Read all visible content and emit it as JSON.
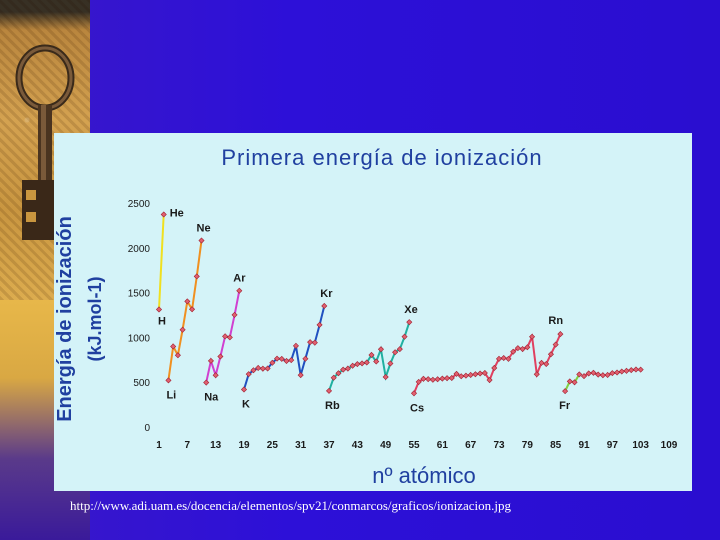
{
  "source_url": "http://www.adi.uam.es/docencia/elementos/spv21/conmarcos/graficos/ionizacion.jpg",
  "chart_data": {
    "type": "line",
    "title": "Primera energía de ionización",
    "xlabel": "nº atómico",
    "ylabel_line1": "Energía de ionización",
    "ylabel_line2": "(kJ.mol-1)",
    "ylim": [
      0,
      2500
    ],
    "xlim": [
      1,
      109
    ],
    "y_ticks": [
      "0",
      "500",
      "1000",
      "1500",
      "2000",
      "2500"
    ],
    "x_ticks": [
      "1",
      "7",
      "13",
      "19",
      "25",
      "31",
      "37",
      "43",
      "49",
      "55",
      "61",
      "67",
      "73",
      "79",
      "85",
      "91",
      "97",
      "103",
      "109"
    ],
    "grid": false,
    "series": [
      {
        "color": "#f0e020",
        "points": [
          [
            1,
            1312
          ],
          [
            2,
            2372
          ]
        ]
      },
      {
        "color": "#f09020",
        "points": [
          [
            3,
            520
          ],
          [
            4,
            899
          ],
          [
            5,
            801
          ],
          [
            6,
            1086
          ],
          [
            7,
            1402
          ],
          [
            8,
            1314
          ],
          [
            9,
            1681
          ],
          [
            10,
            2081
          ]
        ]
      },
      {
        "color": "#d040d0",
        "points": [
          [
            11,
            496
          ],
          [
            12,
            738
          ],
          [
            13,
            578
          ],
          [
            14,
            787
          ],
          [
            15,
            1012
          ],
          [
            16,
            1000
          ],
          [
            17,
            1251
          ],
          [
            18,
            1521
          ]
        ]
      },
      {
        "color": "#2050c0",
        "points": [
          [
            19,
            419
          ],
          [
            20,
            590
          ],
          [
            21,
            633
          ],
          [
            22,
            659
          ],
          [
            23,
            651
          ],
          [
            24,
            653
          ],
          [
            25,
            717
          ],
          [
            26,
            763
          ],
          [
            27,
            760
          ],
          [
            28,
            737
          ],
          [
            29,
            746
          ],
          [
            30,
            906
          ],
          [
            31,
            579
          ],
          [
            32,
            762
          ],
          [
            33,
            947
          ],
          [
            34,
            941
          ],
          [
            35,
            1140
          ],
          [
            36,
            1351
          ]
        ]
      },
      {
        "color": "#20b0a0",
        "points": [
          [
            37,
            403
          ],
          [
            38,
            550
          ],
          [
            39,
            600
          ],
          [
            40,
            640
          ],
          [
            41,
            652
          ],
          [
            42,
            684
          ],
          [
            43,
            702
          ],
          [
            44,
            710
          ],
          [
            45,
            720
          ],
          [
            46,
            804
          ],
          [
            47,
            731
          ],
          [
            48,
            868
          ],
          [
            49,
            558
          ],
          [
            50,
            709
          ],
          [
            51,
            834
          ],
          [
            52,
            869
          ],
          [
            53,
            1008
          ],
          [
            54,
            1170
          ]
        ]
      },
      {
        "color": "#e04060",
        "points": [
          [
            55,
            376
          ],
          [
            56,
            503
          ],
          [
            57,
            538
          ],
          [
            58,
            534
          ],
          [
            59,
            527
          ],
          [
            60,
            533
          ],
          [
            61,
            540
          ],
          [
            62,
            545
          ],
          [
            63,
            547
          ],
          [
            64,
            593
          ],
          [
            65,
            566
          ],
          [
            66,
            573
          ],
          [
            67,
            581
          ],
          [
            68,
            589
          ],
          [
            69,
            597
          ],
          [
            70,
            603
          ],
          [
            71,
            524
          ],
          [
            72,
            659
          ],
          [
            73,
            761
          ],
          [
            74,
            770
          ],
          [
            75,
            760
          ],
          [
            76,
            840
          ],
          [
            77,
            880
          ],
          [
            78,
            870
          ],
          [
            79,
            890
          ],
          [
            80,
            1007
          ],
          [
            81,
            589
          ],
          [
            82,
            716
          ],
          [
            83,
            703
          ],
          [
            84,
            812
          ],
          [
            85,
            920
          ],
          [
            86,
            1037
          ]
        ]
      },
      {
        "color": "#80d040",
        "points": [
          [
            87,
            400
          ],
          [
            88,
            509
          ],
          [
            89,
            499
          ],
          [
            90,
            587
          ]
        ]
      },
      {
        "color": "#e04060",
        "points": [
          [
            91,
            568
          ],
          [
            92,
            598
          ],
          [
            93,
            605
          ],
          [
            94,
            585
          ],
          [
            95,
            578
          ],
          [
            96,
            581
          ],
          [
            97,
            601
          ],
          [
            98,
            608
          ],
          [
            99,
            619
          ],
          [
            100,
            627
          ],
          [
            101,
            635
          ],
          [
            102,
            642
          ],
          [
            103,
            640
          ]
        ]
      }
    ],
    "annotations": [
      {
        "text": "He",
        "x": 2,
        "y": 2372
      },
      {
        "text": "Ne",
        "x": 10,
        "y": 2081
      },
      {
        "text": "Ar",
        "x": 18,
        "y": 1521
      },
      {
        "text": "Kr",
        "x": 36,
        "y": 1351
      },
      {
        "text": "Xe",
        "x": 54,
        "y": 1170
      },
      {
        "text": "Rn",
        "x": 86,
        "y": 1037
      },
      {
        "text": "H",
        "x": 1,
        "y": 1312
      },
      {
        "text": "Li",
        "x": 3,
        "y": 520
      },
      {
        "text": "Na",
        "x": 11,
        "y": 496
      },
      {
        "text": "K",
        "x": 19,
        "y": 419
      },
      {
        "text": "Rb",
        "x": 37,
        "y": 403
      },
      {
        "text": "Cs",
        "x": 55,
        "y": 376
      },
      {
        "text": "Fr",
        "x": 87,
        "y": 400
      }
    ]
  }
}
